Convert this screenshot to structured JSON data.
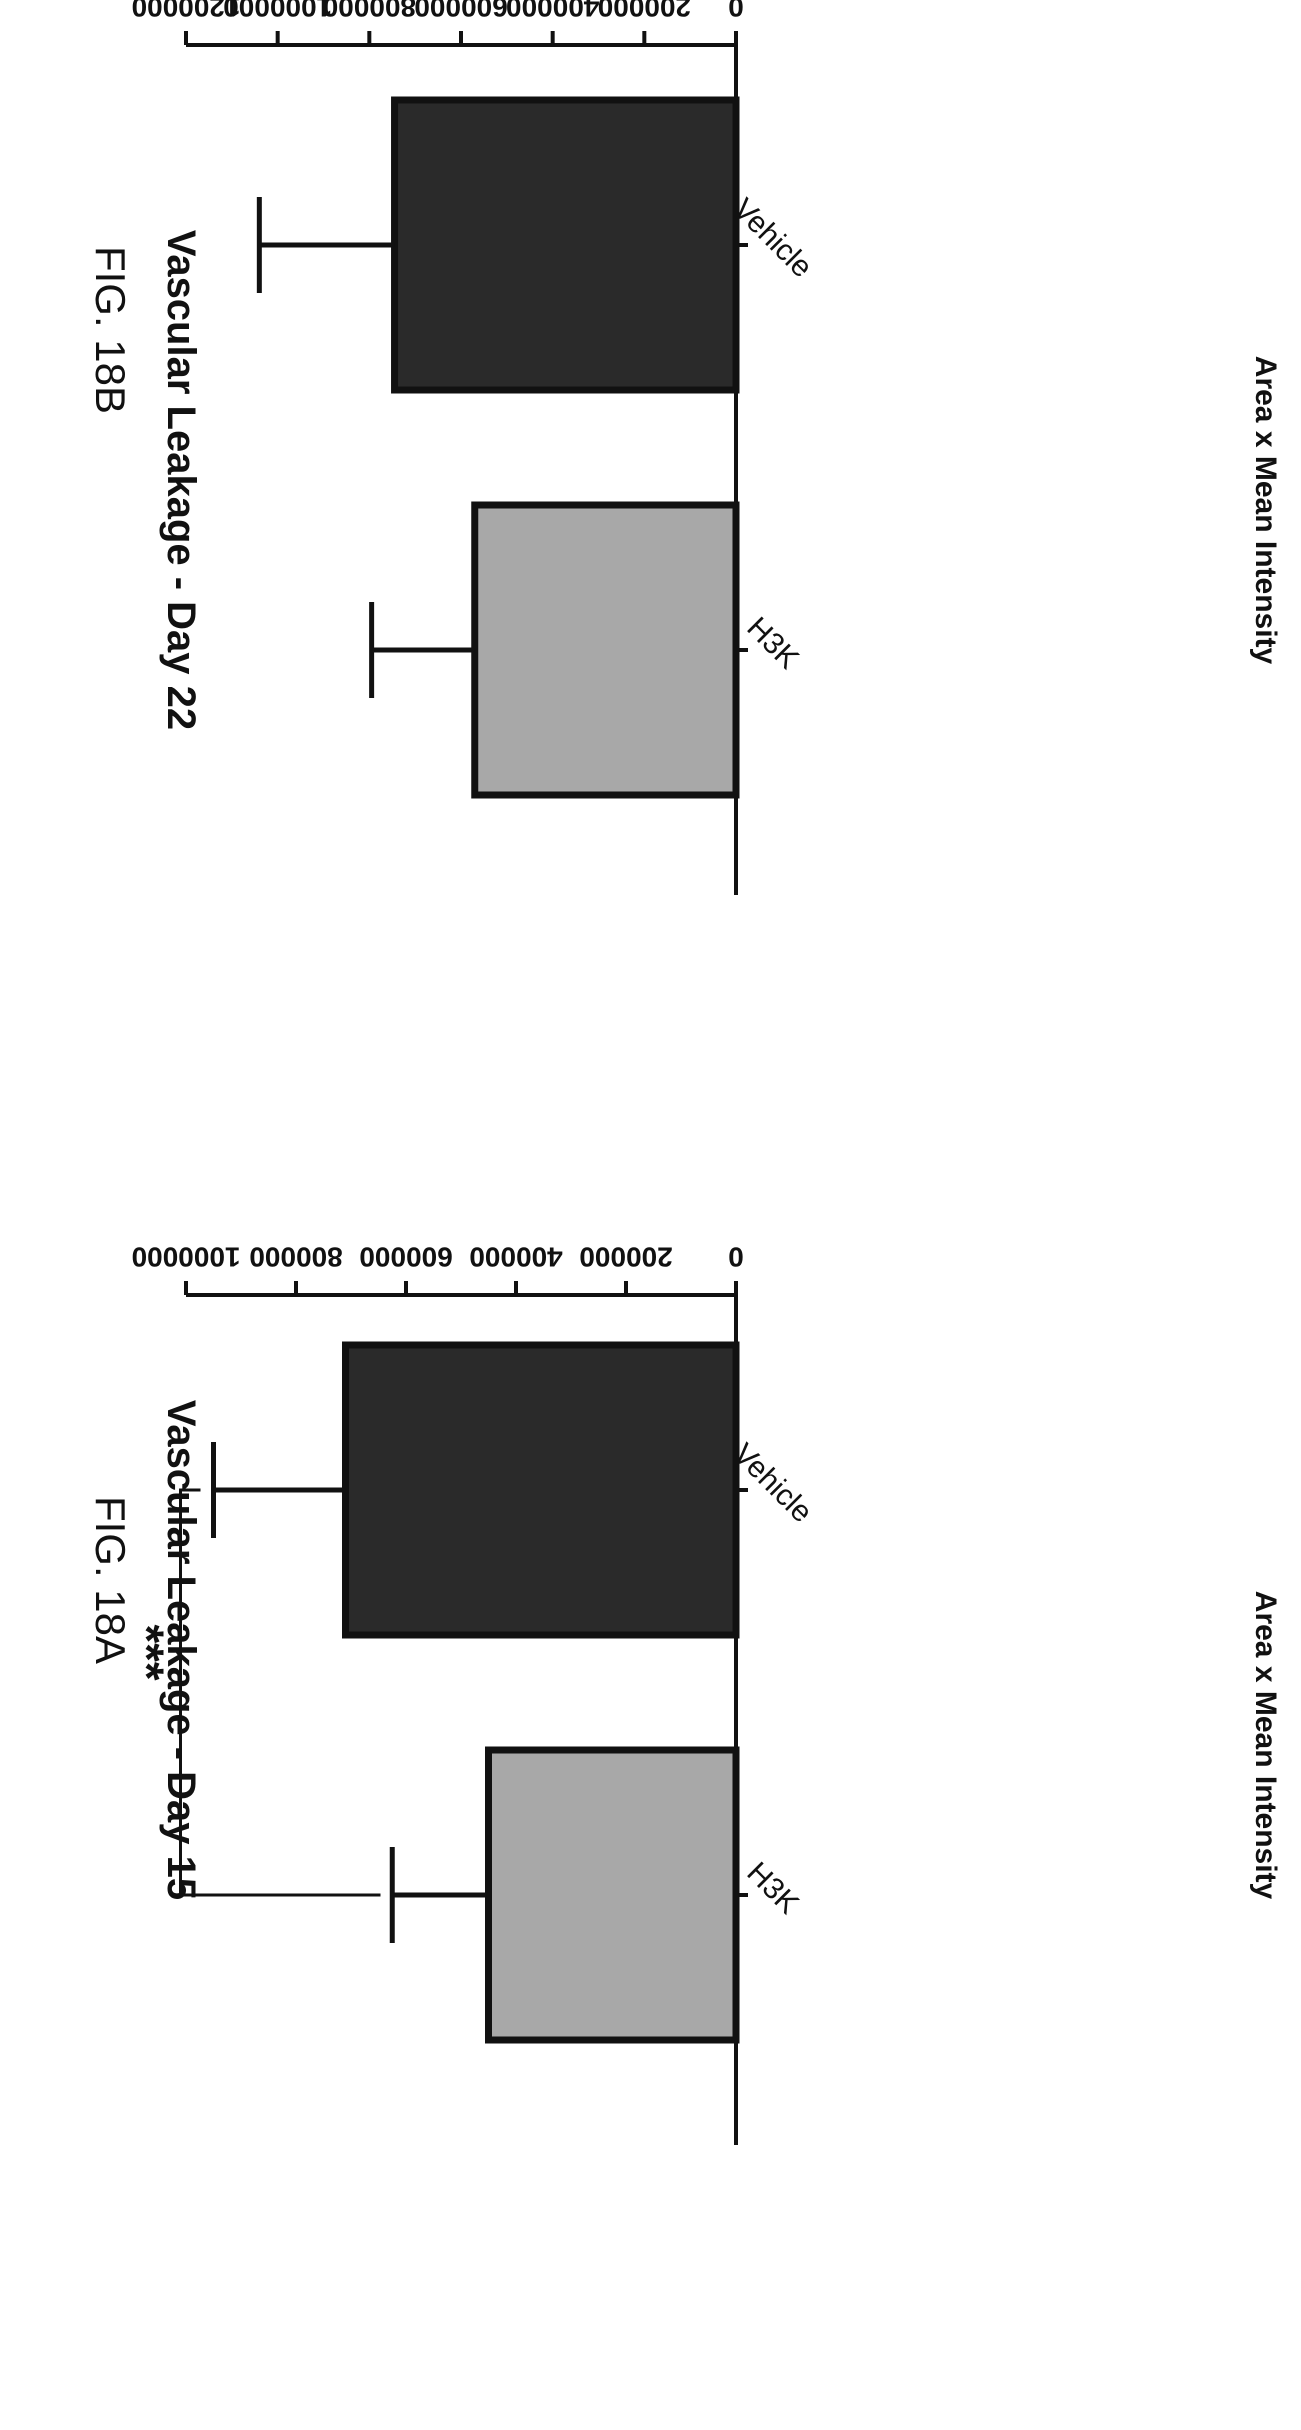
{
  "chart_data": [
    {
      "figure_label": "FIG. 18A",
      "type": "bar",
      "title": "Vascular Leakage - Day 15",
      "ylabel": "Area x Mean Intensity",
      "xlabel": "",
      "categories": [
        "Vehicle",
        "H3K"
      ],
      "values": [
        710000,
        450000
      ],
      "error": [
        240000,
        175000
      ],
      "ylim": [
        0,
        1000000
      ],
      "yticks": [
        "0",
        "200000",
        "400000",
        "600000",
        "800000",
        "1000000"
      ],
      "significance": "***",
      "bar_colors": [
        "#2a2a2a",
        "#a8a8a8"
      ],
      "grid": false,
      "legend": "none"
    },
    {
      "figure_label": "FIG. 18B",
      "type": "bar",
      "title": "Vascular Leakage - Day 22",
      "ylabel": "Area x Mean Intensity",
      "xlabel": "",
      "categories": [
        "Vehicle",
        "H3K"
      ],
      "values": [
        745000,
        570000
      ],
      "error": [
        295000,
        225000
      ],
      "ylim": [
        0,
        1200000
      ],
      "yticks": [
        "0",
        "200000",
        "400000",
        "600000",
        "800000",
        "1000000",
        "1200000"
      ],
      "bar_colors": [
        "#2a2a2a",
        "#a8a8a8"
      ],
      "grid": false,
      "legend": "none"
    }
  ]
}
